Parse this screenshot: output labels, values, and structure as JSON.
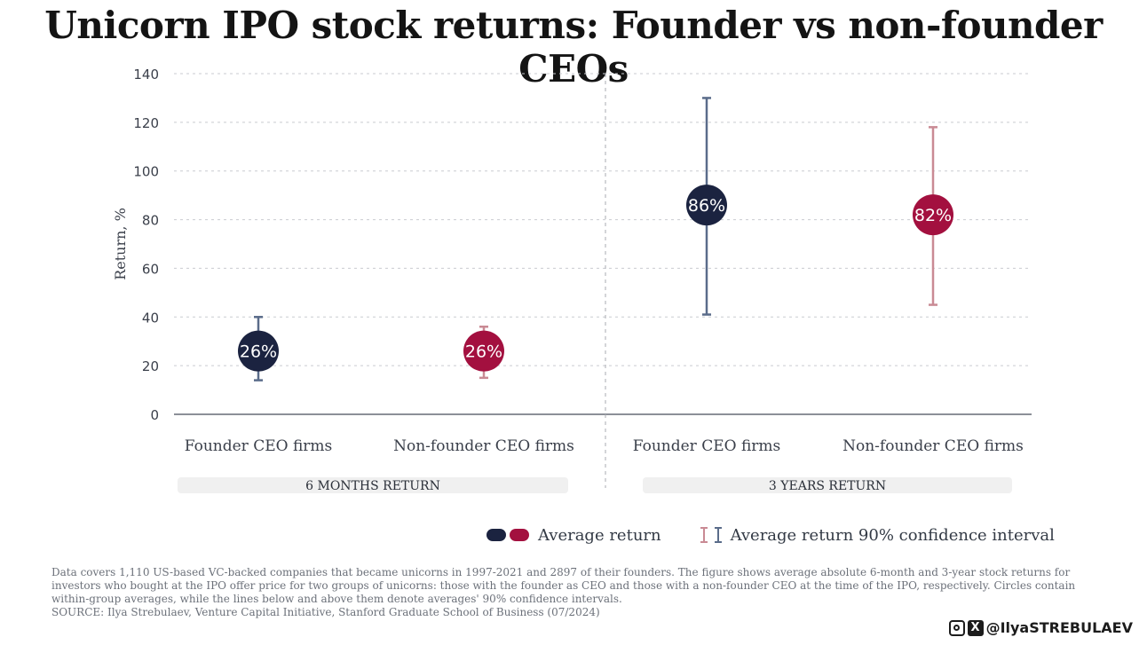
{
  "title": "Unicorn IPO stock returns: Founder vs non-founder CEOs",
  "chart_data": {
    "type": "scatter",
    "subtype": "dot-with-error-bars",
    "title": "Unicorn IPO stock returns: Founder vs non-founder CEOs",
    "ylabel": "Return, %",
    "ylim": [
      0,
      140
    ],
    "yticks": [
      0,
      20,
      40,
      60,
      80,
      100,
      120,
      140
    ],
    "grid": true,
    "groups": [
      {
        "label": "6 MONTHS RETURN",
        "points": [
          {
            "category": "Founder CEO firms",
            "series": "founder",
            "value": 26,
            "label": "26%",
            "ci_low": 14,
            "ci_high": 40
          },
          {
            "category": "Non-founder CEO firms",
            "series": "non-founder",
            "value": 26,
            "label": "26%",
            "ci_low": 15,
            "ci_high": 36
          }
        ]
      },
      {
        "label": "3 YEARS RETURN",
        "points": [
          {
            "category": "Founder CEO firms",
            "series": "founder",
            "value": 86,
            "label": "86%",
            "ci_low": 41,
            "ci_high": 130
          },
          {
            "category": "Non-founder CEO firms",
            "series": "non-founder",
            "value": 82,
            "label": "82%",
            "ci_low": 45,
            "ci_high": 118
          }
        ]
      }
    ],
    "colors": {
      "founder": "#1b2340",
      "non-founder": "#a3103f",
      "founder_ci": "#5a6c8a",
      "non-founder_ci": "#c98a94",
      "grid": "#c9cbd0",
      "axis": "#8c9098",
      "group_band": "#f0f0f0"
    }
  },
  "legend": {
    "average_label": "Average return",
    "ci_label": "Average return 90% confidence interval"
  },
  "footnote": {
    "text": "Data covers 1,110 US-based VC-backed companies that became unicorns in 1997-2021 and 2897 of their founders. The figure shows average absolute 6-month and 3-year stock returns for investors who bought at the IPO offer price for two groups of unicorns: those with the founder as CEO and those with a non-founder CEO at the time of the IPO, respectively. Circles contain within-group averages, while the lines below and above them denote averages' 90% confidence intervals.",
    "source": "SOURCE: Ilya Strebulaev, Venture Capital Initiative, Stanford Graduate School of Business (07/2024)"
  },
  "handle": "@IlyaSTREBULAEV"
}
